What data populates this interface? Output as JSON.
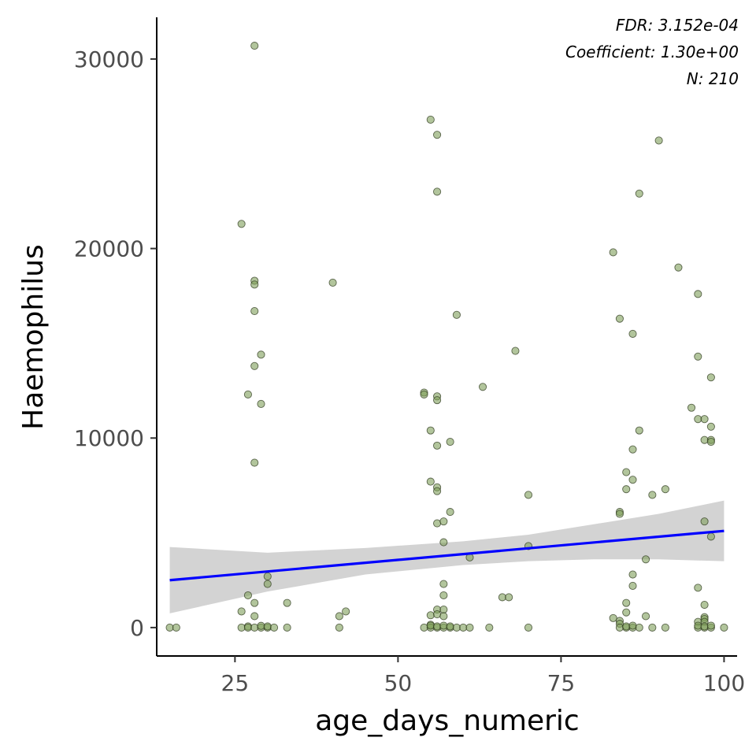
{
  "chart_data": {
    "type": "scatter",
    "title": "",
    "xlabel": "age_days_numeric",
    "ylabel": "Haemophilus",
    "xlim": [
      13,
      102
    ],
    "ylim": [
      -1500,
      32200
    ],
    "x_ticks": [
      25,
      50,
      75,
      100
    ],
    "y_ticks": [
      0,
      10000,
      20000,
      30000
    ],
    "grid": false,
    "annotations": [
      "FDR: 3.152e-04",
      "Coefficient: 1.30e+00",
      "N: 210"
    ],
    "colors": {
      "point_fill": "#7f9e5a",
      "point_stroke": "#2f3a1f",
      "trend_line": "#0000ff",
      "confidence_band": "#d3d3d3"
    },
    "trend_line": {
      "x": [
        15,
        100
      ],
      "y": [
        2500,
        5100
      ]
    },
    "confidence_band": {
      "x": [
        15,
        30,
        45,
        60,
        70,
        80,
        90,
        100
      ],
      "lower": [
        750,
        1900,
        2800,
        3300,
        3500,
        3600,
        3600,
        3500
      ],
      "upper": [
        4250,
        3950,
        4200,
        4550,
        4900,
        5450,
        6000,
        6700
      ]
    },
    "series": [
      {
        "points": [
          [
            28,
            30700
          ],
          [
            55,
            26800
          ],
          [
            56,
            26000
          ],
          [
            90,
            25700
          ],
          [
            56,
            23000
          ],
          [
            87,
            22900
          ],
          [
            26,
            21300
          ],
          [
            83,
            19800
          ],
          [
            93,
            19000
          ],
          [
            28,
            18300
          ],
          [
            28,
            18100
          ],
          [
            40,
            18200
          ],
          [
            96,
            17600
          ],
          [
            28,
            16700
          ],
          [
            59,
            16500
          ],
          [
            84,
            16300
          ],
          [
            86,
            15500
          ],
          [
            68,
            14600
          ],
          [
            29,
            14400
          ],
          [
            96,
            14300
          ],
          [
            28,
            13800
          ],
          [
            98,
            13200
          ],
          [
            63,
            12700
          ],
          [
            54,
            12400
          ],
          [
            54,
            12300
          ],
          [
            27,
            12300
          ],
          [
            56,
            12200
          ],
          [
            56,
            12000
          ],
          [
            29,
            11800
          ],
          [
            95,
            11600
          ],
          [
            96,
            11000
          ],
          [
            97,
            11000
          ],
          [
            98,
            10600
          ],
          [
            55,
            10400
          ],
          [
            87,
            10400
          ],
          [
            97,
            9900
          ],
          [
            98,
            9900
          ],
          [
            98,
            9800
          ],
          [
            58,
            9800
          ],
          [
            56,
            9600
          ],
          [
            86,
            9400
          ],
          [
            28,
            8700
          ],
          [
            85,
            8200
          ],
          [
            55,
            7700
          ],
          [
            86,
            7800
          ],
          [
            56,
            7400
          ],
          [
            56,
            7200
          ],
          [
            85,
            7300
          ],
          [
            91,
            7300
          ],
          [
            70,
            7000
          ],
          [
            89,
            7000
          ],
          [
            58,
            6100
          ],
          [
            84,
            6100
          ],
          [
            84,
            6000
          ],
          [
            97,
            5600
          ],
          [
            56,
            5500
          ],
          [
            57,
            5600
          ],
          [
            98,
            4800
          ],
          [
            57,
            4500
          ],
          [
            70,
            4300
          ],
          [
            61,
            3700
          ],
          [
            88,
            3600
          ],
          [
            30,
            2700
          ],
          [
            86,
            2800
          ],
          [
            30,
            2300
          ],
          [
            57,
            2300
          ],
          [
            86,
            2200
          ],
          [
            96,
            2100
          ],
          [
            27,
            1700
          ],
          [
            57,
            1700
          ],
          [
            66,
            1600
          ],
          [
            67,
            1600
          ],
          [
            33,
            1300
          ],
          [
            28,
            1300
          ],
          [
            85,
            1300
          ],
          [
            97,
            1200
          ],
          [
            26,
            850
          ],
          [
            42,
            850
          ],
          [
            56,
            950
          ],
          [
            57,
            950
          ],
          [
            85,
            800
          ],
          [
            41,
            600
          ],
          [
            28,
            600
          ],
          [
            55,
            650
          ],
          [
            56,
            700
          ],
          [
            57,
            600
          ],
          [
            83,
            500
          ],
          [
            88,
            600
          ],
          [
            97,
            550
          ],
          [
            97,
            450
          ],
          [
            84,
            350
          ],
          [
            84,
            200
          ],
          [
            96,
            300
          ],
          [
            97,
            300
          ],
          [
            55,
            150
          ],
          [
            15,
            0
          ],
          [
            16,
            0
          ],
          [
            26,
            0
          ],
          [
            27,
            60
          ],
          [
            27,
            0
          ],
          [
            28,
            0
          ],
          [
            29,
            0
          ],
          [
            29,
            90
          ],
          [
            30,
            0
          ],
          [
            30,
            60
          ],
          [
            31,
            0
          ],
          [
            33,
            0
          ],
          [
            41,
            0
          ],
          [
            54,
            0
          ],
          [
            55,
            0
          ],
          [
            55,
            100
          ],
          [
            56,
            0
          ],
          [
            56,
            60
          ],
          [
            57,
            0
          ],
          [
            57,
            100
          ],
          [
            58,
            0
          ],
          [
            58,
            60
          ],
          [
            59,
            0
          ],
          [
            60,
            0
          ],
          [
            61,
            0
          ],
          [
            64,
            0
          ],
          [
            70,
            0
          ],
          [
            84,
            0
          ],
          [
            85,
            0
          ],
          [
            85,
            60
          ],
          [
            86,
            0
          ],
          [
            86,
            100
          ],
          [
            87,
            0
          ],
          [
            89,
            0
          ],
          [
            91,
            0
          ],
          [
            96,
            0
          ],
          [
            96,
            100
          ],
          [
            97,
            0
          ],
          [
            97,
            60
          ],
          [
            98,
            0
          ],
          [
            98,
            100
          ],
          [
            100,
            0
          ]
        ]
      }
    ]
  }
}
